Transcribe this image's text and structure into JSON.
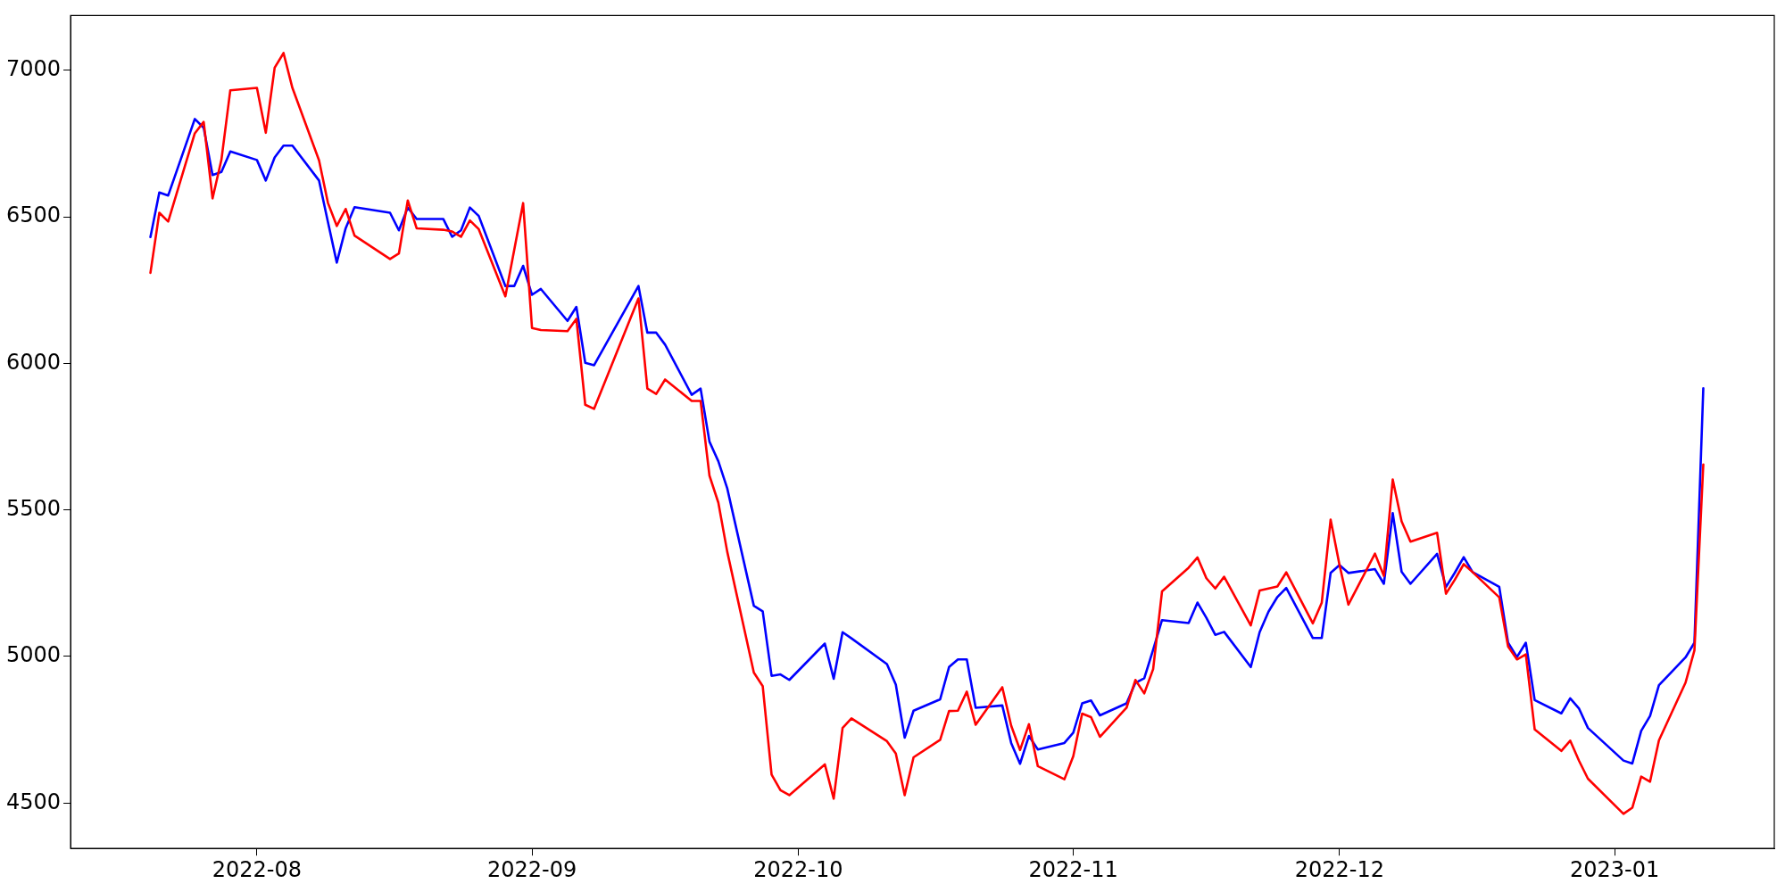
{
  "chart_data": {
    "type": "line",
    "x": [
      "2022-07-20",
      "2022-07-21",
      "2022-07-22",
      "2022-07-25",
      "2022-07-26",
      "2022-07-27",
      "2022-07-28",
      "2022-07-29",
      "2022-08-01",
      "2022-08-02",
      "2022-08-03",
      "2022-08-04",
      "2022-08-05",
      "2022-08-08",
      "2022-08-09",
      "2022-08-10",
      "2022-08-11",
      "2022-08-12",
      "2022-08-16",
      "2022-08-17",
      "2022-08-18",
      "2022-08-19",
      "2022-08-22",
      "2022-08-23",
      "2022-08-24",
      "2022-08-25",
      "2022-08-26",
      "2022-08-29",
      "2022-08-30",
      "2022-08-31",
      "2022-09-01",
      "2022-09-02",
      "2022-09-05",
      "2022-09-06",
      "2022-09-07",
      "2022-09-08",
      "2022-09-13",
      "2022-09-14",
      "2022-09-15",
      "2022-09-16",
      "2022-09-19",
      "2022-09-20",
      "2022-09-21",
      "2022-09-22",
      "2022-09-23",
      "2022-09-26",
      "2022-09-27",
      "2022-09-28",
      "2022-09-29",
      "2022-09-30",
      "2022-10-04",
      "2022-10-05",
      "2022-10-06",
      "2022-10-07",
      "2022-10-11",
      "2022-10-12",
      "2022-10-13",
      "2022-10-14",
      "2022-10-17",
      "2022-10-18",
      "2022-10-19",
      "2022-10-20",
      "2022-10-21",
      "2022-10-24",
      "2022-10-25",
      "2022-10-26",
      "2022-10-27",
      "2022-10-28",
      "2022-10-31",
      "2022-11-01",
      "2022-11-02",
      "2022-11-03",
      "2022-11-04",
      "2022-11-07",
      "2022-11-08",
      "2022-11-09",
      "2022-11-10",
      "2022-11-11",
      "2022-11-14",
      "2022-11-15",
      "2022-11-16",
      "2022-11-17",
      "2022-11-18",
      "2022-11-21",
      "2022-11-22",
      "2022-11-23",
      "2022-11-24",
      "2022-11-25",
      "2022-11-28",
      "2022-11-29",
      "2022-11-30",
      "2022-12-01",
      "2022-12-02",
      "2022-12-05",
      "2022-12-06",
      "2022-12-07",
      "2022-12-08",
      "2022-12-09",
      "2022-12-12",
      "2022-12-13",
      "2022-12-14",
      "2022-12-15",
      "2022-12-16",
      "2022-12-19",
      "2022-12-20",
      "2022-12-21",
      "2022-12-22",
      "2022-12-23",
      "2022-12-26",
      "2022-12-27",
      "2022-12-28",
      "2022-12-29",
      "2023-01-02",
      "2023-01-03",
      "2023-01-04",
      "2023-01-05",
      "2023-01-06",
      "2023-01-09",
      "2023-01-10",
      "2023-01-11"
    ],
    "series": [
      {
        "color": "#ff0000",
        "values": [
          6309,
          6514,
          6484,
          6785,
          6824,
          6563,
          6695,
          6932,
          6940,
          6787,
          7009,
          7059,
          6940,
          6693,
          6548,
          6469,
          6527,
          6436,
          6356,
          6375,
          6556,
          6461,
          6456,
          6450,
          6432,
          6488,
          6458,
          6229,
          6388,
          6547,
          6121,
          6114,
          6110,
          6152,
          5859,
          5845,
          6222,
          5914,
          5896,
          5945,
          5872,
          5872,
          5617,
          5525,
          5358,
          4945,
          4899,
          4597,
          4544,
          4527,
          4632,
          4515,
          4756,
          4789,
          4711,
          4669,
          4527,
          4656,
          4716,
          4814,
          4815,
          4880,
          4767,
          4895,
          4764,
          4681,
          4769,
          4626,
          4581,
          4660,
          4805,
          4793,
          4726,
          4825,
          4920,
          4874,
          4957,
          5222,
          5303,
          5338,
          5267,
          5232,
          5272,
          5106,
          5225,
          5232,
          5239,
          5287,
          5113,
          5183,
          5467,
          5313,
          5177,
          5351,
          5275,
          5604,
          5461,
          5392,
          5422,
          5214,
          5262,
          5315,
          5288,
          5202,
          5034,
          4990,
          5007,
          4751,
          4678,
          4713,
          4644,
          4583,
          4463,
          4484,
          4590,
          4573,
          4714,
          4911,
          5021,
          5655
        ]
      },
      {
        "color": "#0000ff",
        "values": [
          6431,
          6583,
          6573,
          6834,
          6804,
          6643,
          6653,
          6723,
          6694,
          6624,
          6703,
          6743,
          6743,
          6624,
          6483,
          6344,
          6461,
          6533,
          6514,
          6454,
          6532,
          6493,
          6493,
          6432,
          6454,
          6532,
          6503,
          6264,
          6264,
          6333,
          6234,
          6254,
          6145,
          6193,
          6002,
          5994,
          6264,
          6105,
          6105,
          6064,
          5893,
          5914,
          5733,
          5666,
          5574,
          5173,
          5154,
          4934,
          4939,
          4920,
          5044,
          4924,
          5083,
          5062,
          4974,
          4904,
          4723,
          4815,
          4854,
          4964,
          4990,
          4990,
          4825,
          4833,
          4705,
          4634,
          4729,
          4683,
          4705,
          4740,
          4840,
          4850,
          4799,
          4840,
          4910,
          4926,
          5023,
          5124,
          5114,
          5184,
          5132,
          5074,
          5084,
          4964,
          5083,
          5153,
          5203,
          5234,
          5063,
          5063,
          5285,
          5312,
          5285,
          5298,
          5248,
          5489,
          5289,
          5248,
          5350,
          5237,
          5286,
          5339,
          5288,
          5238,
          5047,
          4998,
          5047,
          4851,
          4806,
          4857,
          4822,
          4756,
          4645,
          4635,
          4746,
          4797,
          4902,
          4997,
          5047,
          5915
        ]
      }
    ],
    "xlim": [
      "2022-07-11",
      "2023-01-19"
    ],
    "xticks": [
      "2022-08",
      "2022-09",
      "2022-10",
      "2022-11",
      "2022-12",
      "2023-01"
    ],
    "ylim": [
      4345,
      7187
    ],
    "yticks": [
      4500,
      5000,
      5500,
      6000,
      6500,
      7000
    ],
    "grid": false,
    "legend": false,
    "marker": "none",
    "line_style": "solid"
  }
}
